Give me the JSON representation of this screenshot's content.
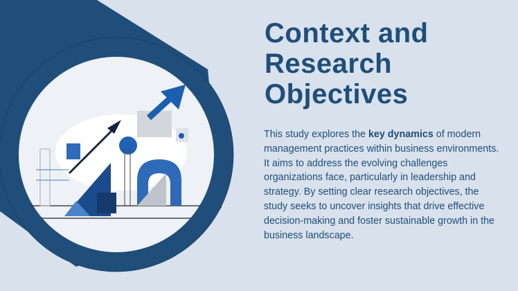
{
  "slide": {
    "title_lines": [
      "Context and",
      "Research",
      "Objectives"
    ],
    "body": {
      "before": "This study explores the ",
      "emphasis": "key dynamics",
      "after": " of modern management practices within business environments. It aims to address the evolving challenges organizations face, particularly in leadership and strategy. By setting clear research objectives, the study seeks to uncover insights that drive effective decision-making and foster sustainable growth in the business landscape."
    },
    "colors": {
      "background": "#d9e1ec",
      "accent": "#1f4e7a",
      "bright_blue": "#1c5fb0",
      "circle_fill": "#eef1f6"
    },
    "illustration": "business-growth-illustration"
  }
}
